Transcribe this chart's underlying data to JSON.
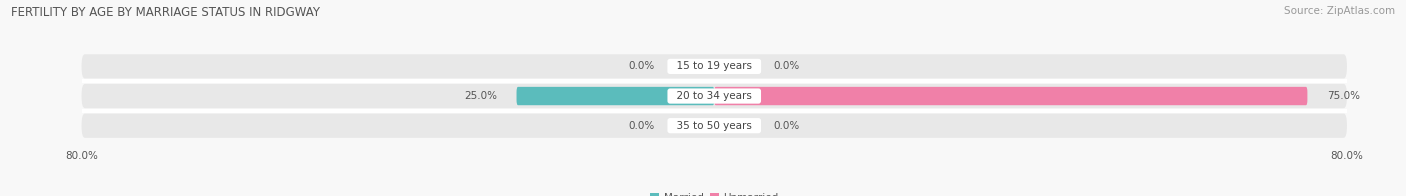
{
  "title": "FERTILITY BY AGE BY MARRIAGE STATUS IN RIDGWAY",
  "source": "Source: ZipAtlas.com",
  "categories": [
    "15 to 19 years",
    "20 to 34 years",
    "35 to 50 years"
  ],
  "married_values": [
    0.0,
    25.0,
    0.0
  ],
  "unmarried_values": [
    0.0,
    75.0,
    0.0
  ],
  "married_color": "#5bbcbc",
  "unmarried_color": "#f080a8",
  "axis_limit": 80.0,
  "stub_size": 5.5,
  "title_fontsize": 8.5,
  "source_fontsize": 7.5,
  "label_fontsize": 7.5,
  "category_fontsize": 7.5,
  "bar_height": 0.62,
  "background_color": "#f8f8f8",
  "bar_row_bg": "#e8e8e8",
  "separator_color": "#ffffff",
  "title_color": "#555555",
  "source_color": "#999999",
  "label_color": "#555555"
}
